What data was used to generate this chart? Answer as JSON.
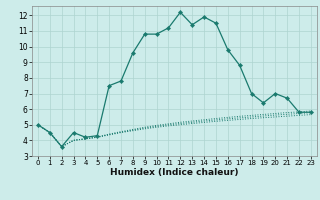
{
  "xlabel": "Humidex (Indice chaleur)",
  "bg_color": "#cdecea",
  "grid_color": "#aed4d0",
  "line_color": "#1a7a6e",
  "xlim": [
    -0.5,
    23.5
  ],
  "ylim": [
    3,
    12.6
  ],
  "yticks": [
    3,
    4,
    5,
    6,
    7,
    8,
    9,
    10,
    11,
    12
  ],
  "xticks": [
    0,
    1,
    2,
    3,
    4,
    5,
    6,
    7,
    8,
    9,
    10,
    11,
    12,
    13,
    14,
    15,
    16,
    17,
    18,
    19,
    20,
    21,
    22,
    23
  ],
  "main_x": [
    0,
    1,
    2,
    3,
    4,
    5,
    6,
    7,
    8,
    9,
    10,
    11,
    12,
    13,
    14,
    15,
    16,
    17,
    18,
    19,
    20,
    21,
    22,
    23
  ],
  "main_y": [
    5.0,
    4.5,
    3.6,
    4.5,
    4.2,
    4.3,
    7.5,
    7.8,
    9.6,
    10.8,
    10.8,
    11.2,
    12.2,
    11.4,
    11.9,
    11.5,
    9.8,
    8.8,
    7.0,
    6.4,
    7.0,
    6.7,
    5.8,
    5.8
  ],
  "dot_lines": [
    [
      5.0,
      4.5,
      3.6,
      4.0,
      4.1,
      4.2,
      4.35,
      4.5,
      4.62,
      4.74,
      4.84,
      4.93,
      5.0,
      5.08,
      5.15,
      5.22,
      5.28,
      5.34,
      5.4,
      5.45,
      5.5,
      5.55,
      5.6,
      5.65
    ],
    [
      5.0,
      4.5,
      3.6,
      4.0,
      4.1,
      4.2,
      4.38,
      4.52,
      4.66,
      4.79,
      4.9,
      5.0,
      5.08,
      5.16,
      5.24,
      5.31,
      5.38,
      5.44,
      5.5,
      5.56,
      5.62,
      5.67,
      5.72,
      5.77
    ],
    [
      5.0,
      4.5,
      3.6,
      4.0,
      4.1,
      4.22,
      4.4,
      4.56,
      4.7,
      4.84,
      4.96,
      5.06,
      5.16,
      5.24,
      5.32,
      5.4,
      5.47,
      5.54,
      5.6,
      5.66,
      5.72,
      5.78,
      5.82,
      5.88
    ]
  ]
}
